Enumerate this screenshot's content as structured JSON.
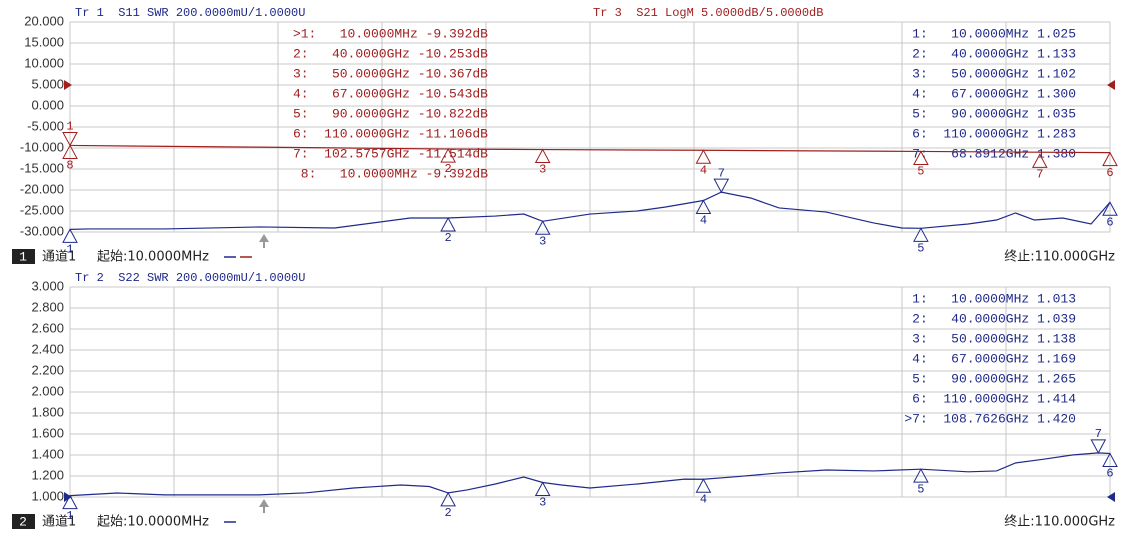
{
  "chart_data": [
    {
      "type": "line",
      "channel": "1",
      "channel_label": "通道1",
      "start": "起始:10.0000MHz",
      "stop": "终止:110.000GHz",
      "xlim": [
        0.01,
        110
      ],
      "ylim": [
        -30,
        20
      ],
      "y2lim": [
        1,
        3
      ],
      "grid": true,
      "yticks": [
        {
          "value": 20,
          "label": "20.000"
        },
        {
          "value": 15,
          "label": "15.000"
        },
        {
          "value": 10,
          "label": "10.000"
        },
        {
          "value": 5,
          "label": "5.000"
        },
        {
          "value": 0,
          "label": "0.000"
        },
        {
          "value": -5,
          "label": "-5.000"
        },
        {
          "value": -10,
          "label": "-10.000"
        },
        {
          "value": -15,
          "label": "-15.000"
        },
        {
          "value": -20,
          "label": "-20.000"
        },
        {
          "value": -25,
          "label": "-25.000"
        },
        {
          "value": -30,
          "label": "-30.000"
        }
      ],
      "series": [
        {
          "name": "Tr 1  S11 SWR 200.0000mU/1.0000U",
          "color": "#1f2a8a",
          "axis": "y2",
          "x": [
            0.01,
            2,
            10,
            20,
            28,
            32,
            36,
            40,
            45,
            48,
            50,
            55,
            60,
            63,
            67,
            68.8912,
            72,
            75,
            80,
            85,
            88,
            90,
            95,
            98,
            100,
            102,
            105,
            108,
            110
          ],
          "values": [
            1.025,
            1.029,
            1.029,
            1.048,
            1.038,
            1.086,
            1.133,
            1.133,
            1.152,
            1.171,
            1.102,
            1.171,
            1.2,
            1.238,
            1.3,
            1.38,
            1.324,
            1.229,
            1.19,
            1.086,
            1.038,
            1.035,
            1.076,
            1.114,
            1.181,
            1.114,
            1.133,
            1.076,
            1.283
          ],
          "markers": [
            {
              "label": "1",
              "x": 0.01,
              "value": 1.025,
              "pointer": "up"
            },
            {
              "label": "2",
              "x": 40,
              "value": 1.133,
              "pointer": "up"
            },
            {
              "label": "3",
              "x": 50,
              "value": 1.102,
              "pointer": "up"
            },
            {
              "label": "4",
              "x": 67,
              "value": 1.3,
              "pointer": "up"
            },
            {
              "label": "5",
              "x": 90,
              "value": 1.035,
              "pointer": "up"
            },
            {
              "label": "6",
              "x": 110,
              "value": 1.283,
              "pointer": "up"
            },
            {
              "label": "7",
              "x": 68.8912,
              "value": 1.38,
              "pointer": "down"
            }
          ],
          "marker_table": [
            "1:   10.0000MHz 1.025",
            "2:   40.0000GHz 1.133",
            "3:   50.0000GHz 1.102",
            "4:   67.0000GHz 1.300",
            "5:   90.0000GHz 1.035",
            "6:  110.0000GHz 1.283",
            "7:   68.8912GHz 1.380"
          ]
        },
        {
          "name": "Tr 3  S21 LogM 5.0000dB/5.0000dB",
          "color": "#a01e1e",
          "x": [
            0.01,
            20,
            40,
            50,
            67,
            90,
            110
          ],
          "values": [
            -9.392,
            -9.8,
            -10.253,
            -10.367,
            -10.543,
            -10.822,
            -11.106
          ],
          "markers": [
            {
              "label": "1",
              "x": 0.01,
              "value": -9.392,
              "pointer": "down"
            },
            {
              "label": "2",
              "x": 40,
              "value": -10.253,
              "pointer": "up"
            },
            {
              "label": "3",
              "x": 50,
              "value": -10.367,
              "pointer": "up"
            },
            {
              "label": "4",
              "x": 67,
              "value": -10.543,
              "pointer": "up"
            },
            {
              "label": "5",
              "x": 90,
              "value": -10.822,
              "pointer": "up"
            },
            {
              "label": "6",
              "x": 110,
              "value": -11.106,
              "pointer": "up"
            },
            {
              "label": "7",
              "x": 102.5757,
              "value": -11.514,
              "pointer": "up"
            },
            {
              "label": "8",
              "x": 0.01,
              "value": -9.392,
              "pointer": "up"
            }
          ],
          "marker_table": [
            ">1:   10.0000MHz -9.392dB",
            "2:   40.0000GHz -10.253dB",
            "3:   50.0000GHz -10.367dB",
            "4:   67.0000GHz -10.543dB",
            "5:   90.0000GHz -10.822dB",
            "6:  110.0000GHz -11.106dB",
            "7:  102.5757GHz -11.514dB",
            "8:   10.0000MHz -9.392dB"
          ]
        }
      ]
    },
    {
      "type": "line",
      "channel": "2",
      "channel_label": "通道1",
      "start": "起始:10.0000MHz",
      "stop": "终止:110.000GHz",
      "xlim": [
        0.01,
        110
      ],
      "ylim": [
        1,
        3
      ],
      "grid": true,
      "yticks": [
        {
          "value": 3,
          "label": "3.000"
        },
        {
          "value": 2.8,
          "label": "2.800"
        },
        {
          "value": 2.6,
          "label": "2.600"
        },
        {
          "value": 2.4,
          "label": "2.400"
        },
        {
          "value": 2.2,
          "label": "2.200"
        },
        {
          "value": 2,
          "label": "2.000"
        },
        {
          "value": 1.8,
          "label": "1.800"
        },
        {
          "value": 1.6,
          "label": "1.600"
        },
        {
          "value": 1.4,
          "label": "1.400"
        },
        {
          "value": 1.2,
          "label": "1.200"
        },
        {
          "value": 1,
          "label": "1.000"
        }
      ],
      "series": [
        {
          "name": "Tr 2  S22 SWR 200.0000mU/1.0000U",
          "color": "#1f2a8a",
          "x": [
            0.01,
            5,
            10,
            20,
            25,
            30,
            35,
            38,
            40,
            42,
            45,
            48,
            50,
            52,
            55,
            60,
            65,
            67,
            70,
            75,
            80,
            85,
            90,
            95,
            98,
            100,
            103,
            106,
            108.7626,
            110
          ],
          "values": [
            1.013,
            1.038,
            1.02,
            1.02,
            1.04,
            1.086,
            1.114,
            1.1,
            1.039,
            1.067,
            1.124,
            1.19,
            1.138,
            1.114,
            1.086,
            1.124,
            1.17,
            1.169,
            1.19,
            1.229,
            1.257,
            1.248,
            1.265,
            1.24,
            1.248,
            1.324,
            1.36,
            1.4,
            1.42,
            1.414
          ],
          "markers": [
            {
              "label": "1",
              "x": 0.01,
              "value": 1.013,
              "pointer": "up"
            },
            {
              "label": "2",
              "x": 40,
              "value": 1.039,
              "pointer": "up"
            },
            {
              "label": "3",
              "x": 50,
              "value": 1.138,
              "pointer": "up"
            },
            {
              "label": "4",
              "x": 67,
              "value": 1.169,
              "pointer": "up"
            },
            {
              "label": "5",
              "x": 90,
              "value": 1.265,
              "pointer": "up"
            },
            {
              "label": "6",
              "x": 110,
              "value": 1.414,
              "pointer": "up"
            },
            {
              "label": "7",
              "x": 108.7626,
              "value": 1.42,
              "pointer": "down"
            }
          ],
          "marker_table": [
            "1:   10.0000MHz 1.013",
            "2:   40.0000GHz 1.039",
            "3:   50.0000GHz 1.138",
            "4:   67.0000GHz 1.169",
            "5:   90.0000GHz 1.265",
            "6:  110.0000GHz 1.414",
            ">7:  108.7626GHz 1.420"
          ]
        }
      ]
    }
  ]
}
